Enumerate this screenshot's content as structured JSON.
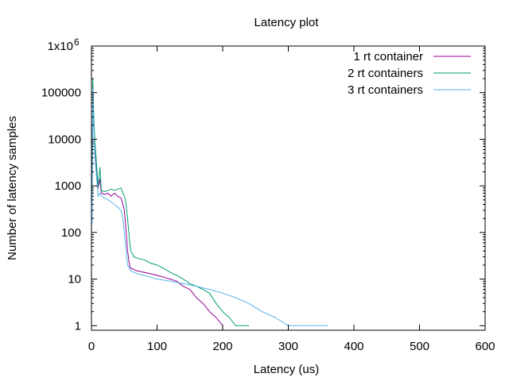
{
  "chart_data": {
    "type": "line",
    "title": "Latency plot",
    "xlabel": "Latency (us)",
    "ylabel": "Number of latency samples",
    "xlim": [
      0,
      600
    ],
    "ylim": [
      0.8,
      1000000
    ],
    "yscale": "log",
    "grid": false,
    "legend_position": "top-right",
    "x_ticks": [
      0,
      100,
      200,
      300,
      400,
      500,
      600
    ],
    "x_tick_labels": [
      "0",
      "100",
      "200",
      "300",
      "400",
      "500",
      "600"
    ],
    "y_ticks": [
      1,
      10,
      100,
      1000,
      10000,
      100000,
      1000000
    ],
    "y_tick_labels": [
      "1",
      "10",
      "100",
      "1000",
      "10000",
      "100000",
      "1x10"
    ],
    "y_top_exponent": "6",
    "series": [
      {
        "name": "1 rt container",
        "color": "#940094",
        "points": [
          [
            1,
            200
          ],
          [
            2,
            150000
          ],
          [
            3,
            30000
          ],
          [
            5,
            8000
          ],
          [
            7,
            2500
          ],
          [
            10,
            900
          ],
          [
            13,
            1400
          ],
          [
            15,
            700
          ],
          [
            20,
            650
          ],
          [
            25,
            700
          ],
          [
            30,
            600
          ],
          [
            35,
            700
          ],
          [
            40,
            600
          ],
          [
            45,
            550
          ],
          [
            48,
            400
          ],
          [
            50,
            300
          ],
          [
            52,
            150
          ],
          [
            55,
            40
          ],
          [
            58,
            20
          ],
          [
            60,
            17
          ],
          [
            65,
            16
          ],
          [
            70,
            15
          ],
          [
            80,
            14
          ],
          [
            90,
            13
          ],
          [
            100,
            12
          ],
          [
            110,
            11
          ],
          [
            120,
            10
          ],
          [
            130,
            9
          ],
          [
            140,
            7
          ],
          [
            150,
            6
          ],
          [
            160,
            4
          ],
          [
            170,
            3
          ],
          [
            180,
            2
          ],
          [
            190,
            1.5
          ],
          [
            200,
            1
          ]
        ]
      },
      {
        "name": "2 rt containers",
        "color": "#009e73",
        "points": [
          [
            1,
            300
          ],
          [
            2,
            200000
          ],
          [
            3,
            50000
          ],
          [
            5,
            10000
          ],
          [
            7,
            4000
          ],
          [
            10,
            1000
          ],
          [
            13,
            2500
          ],
          [
            15,
            800
          ],
          [
            20,
            750
          ],
          [
            25,
            800
          ],
          [
            30,
            850
          ],
          [
            35,
            800
          ],
          [
            40,
            850
          ],
          [
            45,
            900
          ],
          [
            48,
            700
          ],
          [
            52,
            500
          ],
          [
            55,
            200
          ],
          [
            58,
            70
          ],
          [
            60,
            40
          ],
          [
            65,
            30
          ],
          [
            70,
            28
          ],
          [
            80,
            26
          ],
          [
            90,
            22
          ],
          [
            100,
            20
          ],
          [
            110,
            17
          ],
          [
            120,
            14
          ],
          [
            130,
            12
          ],
          [
            140,
            10
          ],
          [
            150,
            8
          ],
          [
            160,
            7
          ],
          [
            170,
            6
          ],
          [
            180,
            5
          ],
          [
            190,
            3
          ],
          [
            200,
            2
          ],
          [
            210,
            1.5
          ],
          [
            220,
            1
          ],
          [
            240,
            1
          ]
        ]
      },
      {
        "name": "3 rt containers",
        "color": "#56b4e9",
        "points": [
          [
            1,
            150
          ],
          [
            2,
            120000
          ],
          [
            3,
            30000
          ],
          [
            5,
            5000
          ],
          [
            7,
            2000
          ],
          [
            10,
            600
          ],
          [
            13,
            700
          ],
          [
            15,
            600
          ],
          [
            20,
            550
          ],
          [
            25,
            500
          ],
          [
            30,
            450
          ],
          [
            35,
            400
          ],
          [
            40,
            350
          ],
          [
            45,
            300
          ],
          [
            48,
            200
          ],
          [
            50,
            100
          ],
          [
            52,
            50
          ],
          [
            55,
            20
          ],
          [
            60,
            15
          ],
          [
            70,
            13
          ],
          [
            80,
            12
          ],
          [
            90,
            11
          ],
          [
            100,
            10
          ],
          [
            120,
            9
          ],
          [
            140,
            8
          ],
          [
            160,
            7
          ],
          [
            180,
            6
          ],
          [
            200,
            5
          ],
          [
            220,
            4
          ],
          [
            240,
            3
          ],
          [
            260,
            2
          ],
          [
            280,
            1.5
          ],
          [
            300,
            1
          ],
          [
            320,
            1
          ],
          [
            360,
            1
          ]
        ]
      }
    ]
  }
}
